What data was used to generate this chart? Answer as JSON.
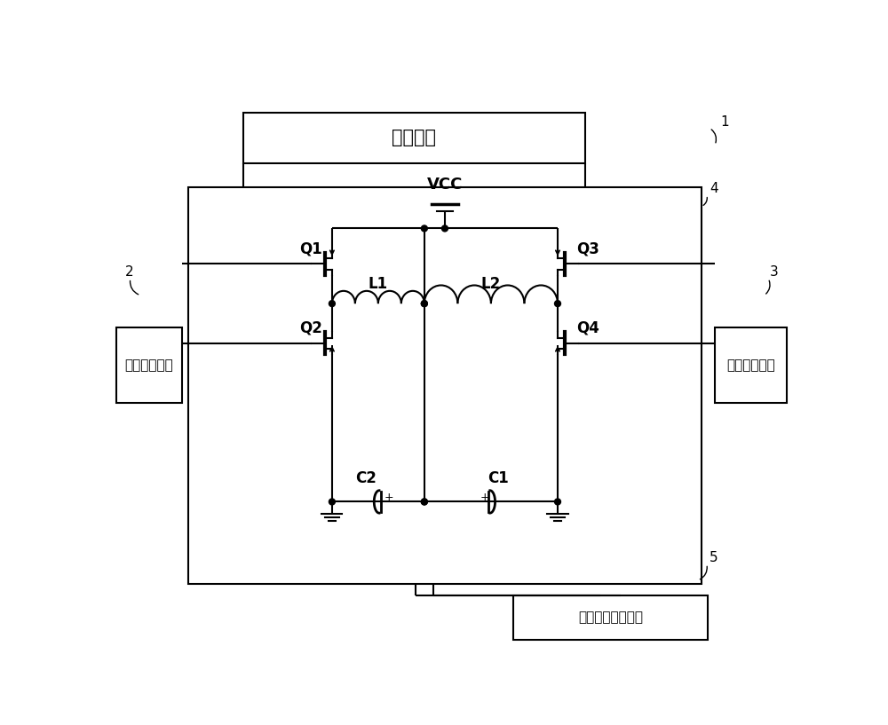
{
  "bg_color": "#ffffff",
  "line_color": "#000000",
  "labels": {
    "control_module": "控制模块",
    "port1": "第一控制端口",
    "port2": "第二控制端口",
    "port3": "调光总线控制端口",
    "vcc": "VCC",
    "q1": "Q1",
    "q2": "Q2",
    "q3": "Q3",
    "q4": "Q4",
    "l1": "L1",
    "l2": "L2",
    "c1": "C1",
    "c2": "C2",
    "num1": "1",
    "num2": "2",
    "num3": "3",
    "num4": "4",
    "num5": "5"
  }
}
